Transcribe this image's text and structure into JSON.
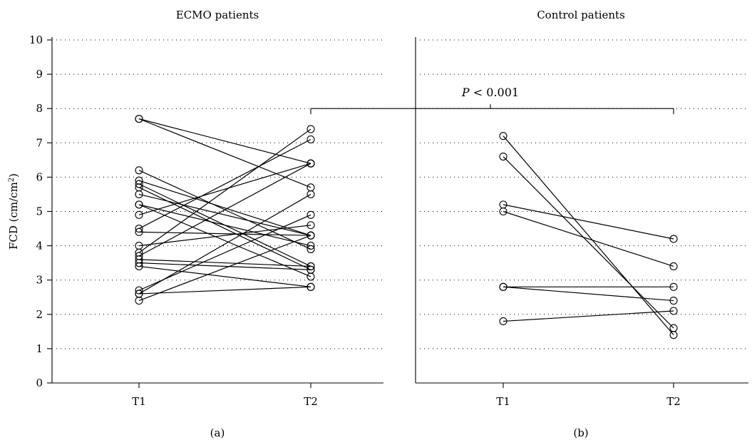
{
  "chart_data": {
    "type": "line",
    "ylabel": "FCD (cm/cm²)",
    "ylim": [
      0,
      10
    ],
    "yticks": [
      0,
      1,
      2,
      3,
      4,
      5,
      6,
      7,
      8,
      9,
      10
    ],
    "grid": true,
    "annotation": "P < 0.001",
    "panels": [
      {
        "title": "ECMO patients",
        "label": "(a)",
        "categories": [
          "T1",
          "T2"
        ],
        "pairs": [
          [
            7.7,
            6.4
          ],
          [
            7.7,
            5.7
          ],
          [
            6.2,
            3.9
          ],
          [
            5.9,
            4.3
          ],
          [
            5.8,
            3.4
          ],
          [
            5.7,
            3.3
          ],
          [
            5.5,
            4.3
          ],
          [
            5.2,
            4.0
          ],
          [
            5.2,
            3.1
          ],
          [
            4.9,
            6.4
          ],
          [
            4.5,
            7.1
          ],
          [
            4.4,
            4.3
          ],
          [
            4.0,
            4.6
          ],
          [
            3.8,
            7.4
          ],
          [
            3.7,
            6.4
          ],
          [
            3.6,
            3.4
          ],
          [
            3.5,
            3.3
          ],
          [
            3.4,
            2.8
          ],
          [
            2.7,
            4.9
          ],
          [
            2.6,
            5.5
          ],
          [
            2.6,
            2.8
          ],
          [
            2.4,
            4.3
          ]
        ]
      },
      {
        "title": "Control patients",
        "label": "(b)",
        "categories": [
          "T1",
          "T2"
        ],
        "pairs": [
          [
            7.2,
            1.4
          ],
          [
            6.6,
            1.6
          ],
          [
            5.2,
            4.2
          ],
          [
            5.0,
            3.4
          ],
          [
            2.8,
            2.8
          ],
          [
            2.8,
            2.4
          ],
          [
            1.8,
            2.1
          ]
        ]
      }
    ]
  }
}
